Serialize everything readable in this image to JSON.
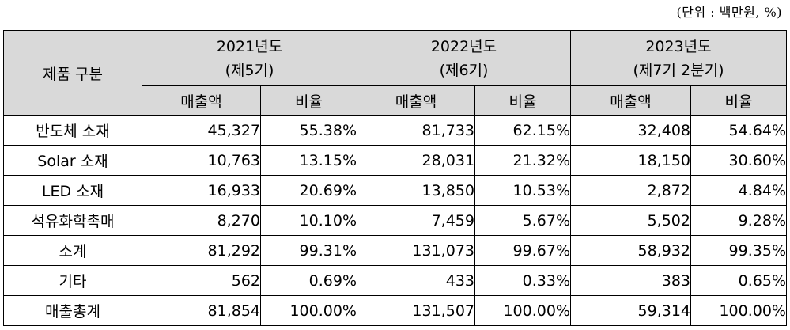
{
  "unit_note": "(단위 : 백만원, %)",
  "table": {
    "corner_header": "제품 구분",
    "years": [
      {
        "year": "2021년도",
        "period": "(제5기)"
      },
      {
        "year": "2022년도",
        "period": "(제6기)"
      },
      {
        "year": "2023년도",
        "period": "(제7기 2분기)"
      }
    ],
    "sub_headers": {
      "sales": "매출액",
      "ratio": "비율"
    },
    "rows": [
      {
        "label": "반도체 소재",
        "cells": [
          "45,327",
          "55.38%",
          "81,733",
          "62.15%",
          "32,408",
          "54.64%"
        ]
      },
      {
        "label": "Solar 소재",
        "cells": [
          "10,763",
          "13.15%",
          "28,031",
          "21.32%",
          "18,150",
          "30.60%"
        ]
      },
      {
        "label": "LED 소재",
        "cells": [
          "16,933",
          "20.69%",
          "13,850",
          "10.53%",
          "2,872",
          "4.84%"
        ]
      },
      {
        "label": "석유화학촉매",
        "cells": [
          "8,270",
          "10.10%",
          "7,459",
          "5.67%",
          "5,502",
          "9.28%"
        ]
      },
      {
        "label": "소계",
        "cells": [
          "81,292",
          "99.31%",
          "131,073",
          "99.67%",
          "58,932",
          "99.35%"
        ]
      },
      {
        "label": "기타",
        "cells": [
          "562",
          "0.69%",
          "433",
          "0.33%",
          "383",
          "0.65%"
        ]
      },
      {
        "label": "매출총계",
        "cells": [
          "81,854",
          "100.00%",
          "131,507",
          "100.00%",
          "59,314",
          "100.00%"
        ]
      }
    ]
  }
}
